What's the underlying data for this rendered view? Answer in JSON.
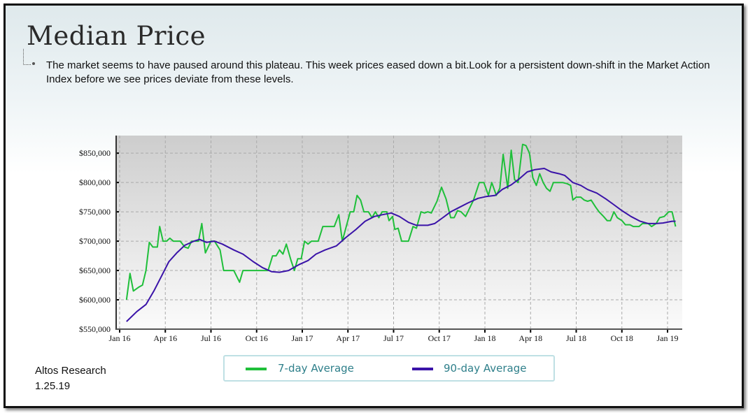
{
  "slide": {
    "title": "Median Price",
    "description": "The market seems to have paused around this plateau. This week prices eased down a bit.Look for a persistent down-shift in the Market Action Index before we see prices deviate from these levels.",
    "source": "Altos Research",
    "date": "1.25.19"
  },
  "colors": {
    "seven_day": "#1fbf3a",
    "ninety_day": "#3a13a8"
  },
  "chart_data": {
    "type": "line",
    "title": "Median Price",
    "xlabel": "",
    "ylabel": "",
    "x_unit": "months since Jan 2016",
    "xlim": [
      0,
      50
    ],
    "ylim": [
      550000,
      880000
    ],
    "grid": true,
    "legend_position": "bottom",
    "x_ticks": [
      {
        "x": 0,
        "label": "Jan 16"
      },
      {
        "x": 3,
        "label": "Apr 16"
      },
      {
        "x": 6,
        "label": "Jul 16"
      },
      {
        "x": 9,
        "label": "Oct 16"
      },
      {
        "x": 12,
        "label": "Jan 17"
      },
      {
        "x": 15,
        "label": "Apr 17"
      },
      {
        "x": 18,
        "label": "Jul 17"
      },
      {
        "x": 21,
        "label": "Oct 17"
      },
      {
        "x": 24,
        "label": "Jan 18"
      },
      {
        "x": 27,
        "label": "Apr 18"
      },
      {
        "x": 30,
        "label": "Jul 18"
      },
      {
        "x": 33,
        "label": "Oct 18"
      },
      {
        "x": 36,
        "label": "Jan 19"
      }
    ],
    "y_ticks": [
      {
        "y": 550000,
        "label": "$550,000"
      },
      {
        "y": 600000,
        "label": "$600,000"
      },
      {
        "y": 650000,
        "label": "$650,000"
      },
      {
        "y": 700000,
        "label": "$700,000"
      },
      {
        "y": 750000,
        "label": "$750,000"
      },
      {
        "y": 800000,
        "label": "$800,000"
      },
      {
        "y": 850000,
        "label": "$850,000"
      }
    ],
    "series": [
      {
        "name": "7-day Average",
        "points": [
          [
            0.45,
            600
          ],
          [
            0.68,
            645
          ],
          [
            0.9,
            615
          ],
          [
            1.28,
            622
          ],
          [
            1.5,
            625
          ],
          [
            1.73,
            650
          ],
          [
            1.95,
            698
          ],
          [
            2.18,
            690
          ],
          [
            2.48,
            690
          ],
          [
            2.63,
            725
          ],
          [
            2.85,
            700
          ],
          [
            3.08,
            700
          ],
          [
            3.3,
            705
          ],
          [
            3.53,
            700
          ],
          [
            3.98,
            700
          ],
          [
            4.28,
            690
          ],
          [
            4.5,
            688
          ],
          [
            4.73,
            700
          ],
          [
            4.95,
            700
          ],
          [
            5.18,
            700
          ],
          [
            5.4,
            730
          ],
          [
            5.63,
            680
          ],
          [
            6.0,
            700
          ],
          [
            6.23,
            700
          ],
          [
            6.6,
            685
          ],
          [
            6.83,
            650
          ],
          [
            7.05,
            650
          ],
          [
            7.5,
            650
          ],
          [
            7.88,
            630
          ],
          [
            8.1,
            650
          ],
          [
            8.63,
            650
          ],
          [
            9.0,
            650
          ],
          [
            9.6,
            650
          ],
          [
            9.75,
            650
          ],
          [
            10.05,
            675
          ],
          [
            10.28,
            675
          ],
          [
            10.5,
            685
          ],
          [
            10.73,
            678
          ],
          [
            10.95,
            695
          ],
          [
            11.25,
            668
          ],
          [
            11.48,
            650
          ],
          [
            11.7,
            670
          ],
          [
            11.93,
            670
          ],
          [
            12.15,
            700
          ],
          [
            12.38,
            695
          ],
          [
            12.6,
            700
          ],
          [
            13.05,
            700
          ],
          [
            13.35,
            725
          ],
          [
            14.1,
            725
          ],
          [
            14.4,
            745
          ],
          [
            14.63,
            700
          ],
          [
            15.15,
            750
          ],
          [
            15.38,
            750
          ],
          [
            15.6,
            778
          ],
          [
            15.83,
            770
          ],
          [
            16.05,
            750
          ],
          [
            16.35,
            750
          ],
          [
            16.58,
            740
          ],
          [
            16.8,
            750
          ],
          [
            17.03,
            740
          ],
          [
            17.25,
            750
          ],
          [
            17.55,
            750
          ],
          [
            17.7,
            735
          ],
          [
            17.93,
            742
          ],
          [
            18.08,
            720
          ],
          [
            18.3,
            722
          ],
          [
            18.53,
            700
          ],
          [
            18.98,
            700
          ],
          [
            19.28,
            725
          ],
          [
            19.5,
            722
          ],
          [
            19.8,
            750
          ],
          [
            20.03,
            748
          ],
          [
            20.25,
            750
          ],
          [
            20.48,
            748
          ],
          [
            20.85,
            768
          ],
          [
            21.15,
            792
          ],
          [
            21.45,
            772
          ],
          [
            21.75,
            740
          ],
          [
            21.98,
            740
          ],
          [
            22.2,
            752
          ],
          [
            22.43,
            750
          ],
          [
            22.73,
            742
          ],
          [
            23.25,
            770
          ],
          [
            23.63,
            800
          ],
          [
            23.93,
            800
          ],
          [
            24.23,
            778
          ],
          [
            24.45,
            800
          ],
          [
            24.75,
            778
          ],
          [
            24.98,
            790
          ],
          [
            25.2,
            848
          ],
          [
            25.5,
            790
          ],
          [
            25.73,
            855
          ],
          [
            25.95,
            805
          ],
          [
            26.18,
            800
          ],
          [
            26.48,
            865
          ],
          [
            26.7,
            863
          ],
          [
            26.93,
            850
          ],
          [
            27.15,
            808
          ],
          [
            27.38,
            795
          ],
          [
            27.6,
            815
          ],
          [
            27.83,
            800
          ],
          [
            28.05,
            790
          ],
          [
            28.28,
            785
          ],
          [
            28.5,
            800
          ],
          [
            29.1,
            800
          ],
          [
            29.4,
            798
          ],
          [
            29.63,
            795
          ],
          [
            29.78,
            770
          ],
          [
            30.0,
            775
          ],
          [
            30.3,
            775
          ],
          [
            30.53,
            770
          ],
          [
            30.75,
            768
          ],
          [
            30.98,
            770
          ],
          [
            31.28,
            758
          ],
          [
            31.5,
            750
          ],
          [
            31.8,
            742
          ],
          [
            32.03,
            735
          ],
          [
            32.25,
            735
          ],
          [
            32.48,
            750
          ],
          [
            32.7,
            740
          ],
          [
            33.0,
            735
          ],
          [
            33.23,
            728
          ],
          [
            33.53,
            728
          ],
          [
            33.75,
            725
          ],
          [
            34.13,
            725
          ],
          [
            34.35,
            730
          ],
          [
            34.73,
            730
          ],
          [
            34.95,
            725
          ],
          [
            35.25,
            730
          ],
          [
            35.48,
            740
          ],
          [
            35.78,
            742
          ],
          [
            36.08,
            750
          ],
          [
            36.3,
            750
          ],
          [
            36.53,
            725
          ]
        ]
      },
      {
        "name": "90-day Average",
        "points": [
          [
            0.45,
            563
          ],
          [
            1.13,
            580
          ],
          [
            1.73,
            592
          ],
          [
            2.25,
            615
          ],
          [
            2.78,
            642
          ],
          [
            3.23,
            665
          ],
          [
            3.75,
            680
          ],
          [
            4.28,
            693
          ],
          [
            4.88,
            700
          ],
          [
            5.25,
            703
          ],
          [
            5.7,
            698
          ],
          [
            6.23,
            700
          ],
          [
            6.75,
            695
          ],
          [
            7.5,
            685
          ],
          [
            8.1,
            678
          ],
          [
            8.78,
            665
          ],
          [
            9.38,
            655
          ],
          [
            9.98,
            648
          ],
          [
            10.5,
            647
          ],
          [
            11.1,
            650
          ],
          [
            11.78,
            660
          ],
          [
            12.38,
            667
          ],
          [
            12.9,
            678
          ],
          [
            13.5,
            685
          ],
          [
            14.25,
            692
          ],
          [
            14.85,
            706
          ],
          [
            15.53,
            720
          ],
          [
            16.13,
            734
          ],
          [
            16.73,
            742
          ],
          [
            17.25,
            745
          ],
          [
            17.85,
            748
          ],
          [
            18.38,
            742
          ],
          [
            18.98,
            732
          ],
          [
            19.5,
            727
          ],
          [
            20.25,
            727
          ],
          [
            20.7,
            730
          ],
          [
            21.23,
            740
          ],
          [
            21.75,
            750
          ],
          [
            22.28,
            757
          ],
          [
            22.88,
            765
          ],
          [
            23.55,
            773
          ],
          [
            24.08,
            776
          ],
          [
            24.68,
            778
          ],
          [
            25.13,
            788
          ],
          [
            25.73,
            796
          ],
          [
            26.25,
            806
          ],
          [
            26.78,
            818
          ],
          [
            27.3,
            822
          ],
          [
            27.9,
            824
          ],
          [
            28.35,
            818
          ],
          [
            28.88,
            815
          ],
          [
            29.25,
            812
          ],
          [
            29.78,
            800
          ],
          [
            30.3,
            795
          ],
          [
            30.75,
            788
          ],
          [
            31.35,
            782
          ],
          [
            31.95,
            772
          ],
          [
            32.48,
            762
          ],
          [
            33.0,
            752
          ],
          [
            33.6,
            742
          ],
          [
            34.2,
            734
          ],
          [
            34.73,
            730
          ],
          [
            35.25,
            730
          ],
          [
            35.7,
            731
          ],
          [
            36.3,
            734
          ],
          [
            36.53,
            734
          ]
        ]
      }
    ]
  }
}
